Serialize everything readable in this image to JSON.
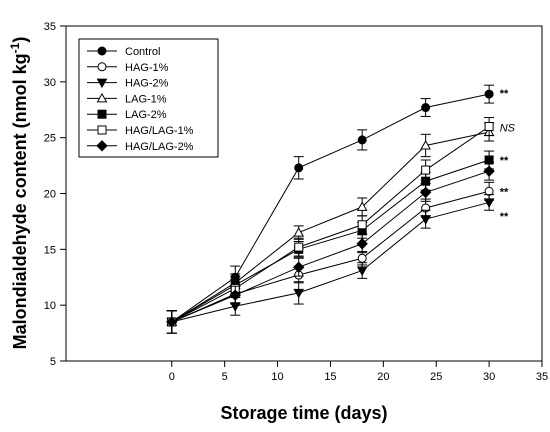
{
  "chart_data": {
    "type": "line",
    "title": "",
    "xlabel": "Storage time (days)",
    "ylabel_main": "Malondialdehyde content (nmol kg",
    "ylabel_sup": "-1",
    "ylabel_close": ")",
    "xlim": [
      -10,
      35
    ],
    "ylim": [
      5,
      35
    ],
    "x_ticks": [
      0,
      5,
      10,
      15,
      20,
      25,
      30,
      35
    ],
    "y_ticks": [
      5,
      10,
      15,
      20,
      25,
      30,
      35
    ],
    "grid": false,
    "legend_position": "top-left",
    "x": [
      0,
      6,
      12,
      18,
      24,
      30
    ],
    "series": [
      {
        "name": "Control",
        "marker": "circle-filled",
        "values": [
          8.5,
          12.5,
          22.3,
          24.8,
          27.7,
          28.9
        ],
        "errors": [
          1.0,
          1.0,
          1.0,
          0.9,
          0.8,
          0.8
        ]
      },
      {
        "name": "HAG-1%",
        "marker": "circle-open",
        "values": [
          8.5,
          11.0,
          12.7,
          14.2,
          18.7,
          20.2
        ],
        "errors": [
          1.0,
          0.8,
          0.7,
          0.6,
          0.8,
          0.8
        ]
      },
      {
        "name": "HAG-2%",
        "marker": "triangle-down-filled",
        "values": [
          8.5,
          9.9,
          11.1,
          13.1,
          17.7,
          19.2
        ],
        "errors": [
          1.0,
          0.8,
          1.0,
          0.7,
          0.8,
          0.7
        ]
      },
      {
        "name": "LAG-1%",
        "marker": "triangle-up-open",
        "values": [
          8.5,
          12.0,
          16.5,
          18.8,
          24.3,
          25.5
        ],
        "errors": [
          1.0,
          0.8,
          0.6,
          0.8,
          1.0,
          0.8
        ]
      },
      {
        "name": "LAG-2%",
        "marker": "square-filled",
        "values": [
          8.5,
          11.8,
          15.0,
          16.7,
          21.1,
          23.0
        ],
        "errors": [
          1.0,
          0.8,
          0.7,
          0.7,
          0.8,
          0.8
        ]
      },
      {
        "name": "HAG/LAG-1%",
        "marker": "square-open",
        "values": [
          8.5,
          11.5,
          15.2,
          17.2,
          22.1,
          26.0
        ],
        "errors": [
          1.0,
          0.8,
          0.8,
          0.8,
          0.9,
          0.8
        ]
      },
      {
        "name": "HAG/LAG-2%",
        "marker": "diamond-filled",
        "values": [
          8.5,
          10.9,
          13.4,
          15.5,
          20.1,
          22.0
        ],
        "errors": [
          1.0,
          0.8,
          0.8,
          0.8,
          0.8,
          0.8
        ]
      }
    ],
    "annotations": [
      {
        "text": "**",
        "x": 31,
        "y": 29.0,
        "style": "bold"
      },
      {
        "text": "NS",
        "x": 31,
        "y": 25.9,
        "style": "italic"
      },
      {
        "text": "**",
        "x": 31,
        "y": 23.0,
        "style": "bold"
      },
      {
        "text": "**",
        "x": 31,
        "y": 20.2,
        "style": "bold"
      },
      {
        "text": "**",
        "x": 31,
        "y": 18.0,
        "style": "bold"
      }
    ]
  }
}
